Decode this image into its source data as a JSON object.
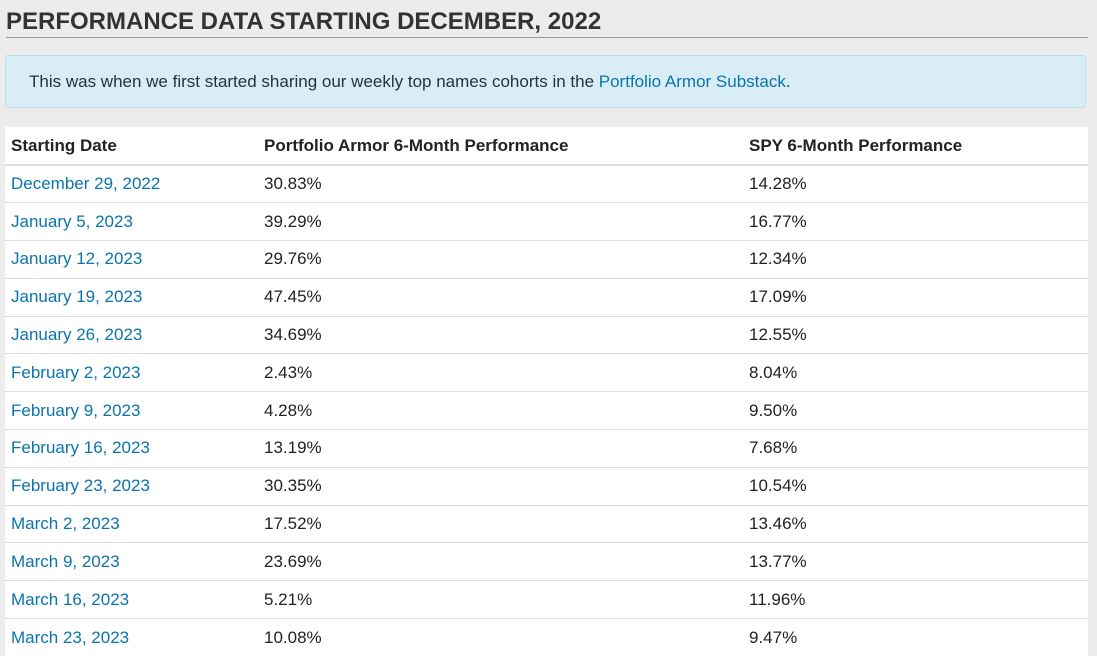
{
  "section": {
    "title": "PERFORMANCE DATA STARTING DECEMBER, 2022"
  },
  "notice": {
    "text_before_link": "This was when we first started sharing our weekly top names cohorts in the ",
    "link_label": "Portfolio Armor Substack",
    "text_after_link": "."
  },
  "table": {
    "headers": [
      "Starting Date",
      "Portfolio Armor 6-Month Performance",
      "SPY 6-Month Performance"
    ],
    "rows": [
      {
        "date": "December 29, 2022",
        "portfolio_armor": "30.83%",
        "spy": "14.28%"
      },
      {
        "date": "January 5, 2023",
        "portfolio_armor": "39.29%",
        "spy": "16.77%"
      },
      {
        "date": "January 12, 2023",
        "portfolio_armor": "29.76%",
        "spy": "12.34%"
      },
      {
        "date": "January 19, 2023",
        "portfolio_armor": "47.45%",
        "spy": "17.09%"
      },
      {
        "date": "January 26, 2023",
        "portfolio_armor": "34.69%",
        "spy": "12.55%"
      },
      {
        "date": "February 2, 2023",
        "portfolio_armor": "2.43%",
        "spy": "8.04%"
      },
      {
        "date": "February 9, 2023",
        "portfolio_armor": "4.28%",
        "spy": "9.50%"
      },
      {
        "date": "February 16, 2023",
        "portfolio_armor": "13.19%",
        "spy": "7.68%"
      },
      {
        "date": "February 23, 2023",
        "portfolio_armor": "30.35%",
        "spy": "10.54%"
      },
      {
        "date": "March 2, 2023",
        "portfolio_armor": "17.52%",
        "spy": "13.46%"
      },
      {
        "date": "March 9, 2023",
        "portfolio_armor": "23.69%",
        "spy": "13.77%"
      },
      {
        "date": "March 16, 2023",
        "portfolio_armor": "5.21%",
        "spy": "11.96%"
      },
      {
        "date": "March 23, 2023",
        "portfolio_armor": "10.08%",
        "spy": "9.47%"
      }
    ]
  },
  "colors": {
    "page_background": "#ececec",
    "notice_background": "#d9edf7",
    "notice_border": "#bcdde9",
    "link": "#0b74ac",
    "text": "#222222",
    "table_line": "#dddddd"
  }
}
